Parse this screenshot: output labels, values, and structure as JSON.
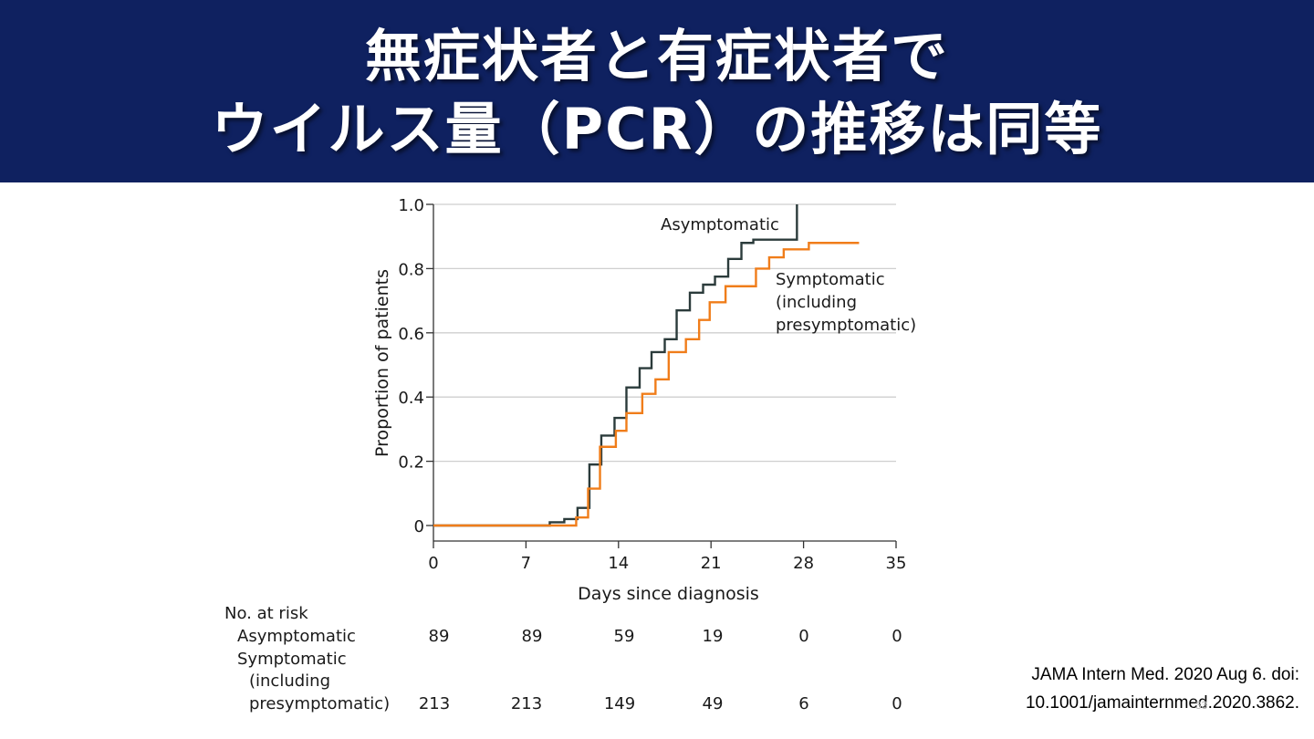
{
  "slide": {
    "title_line1": "無症状者と有症状者で",
    "title_line2": "ウイルス量（PCR）の推移は同等",
    "banner_color": "#0f2160",
    "citation_line1": "JAMA Intern Med. 2020 Aug 6. doi:",
    "citation_line2": "10.1001/jamainternmed.2020.3862.",
    "page_number": "33"
  },
  "chart_data": {
    "type": "line",
    "step": true,
    "xlabel": "Days since diagnosis",
    "ylabel": "Proportion of patients",
    "xlim": [
      0,
      35
    ],
    "ylim": [
      0,
      1.0
    ],
    "xticks": [
      0,
      7,
      14,
      21,
      28,
      35
    ],
    "yticks": [
      0,
      0.2,
      0.4,
      0.6,
      0.8,
      1.0
    ],
    "ytick_labels": [
      "0",
      "0.2",
      "0.4",
      "0.6",
      "0.8",
      "1.0"
    ],
    "grid": "horizontal",
    "series": [
      {
        "name": "Asymptomatic",
        "label_lines": [
          "Asymptomatic"
        ],
        "color": "#2b3b3b",
        "x": [
          0,
          8.8,
          9.9,
          10.9,
          11.8,
          12.7,
          13.7,
          14.6,
          15.6,
          16.5,
          17.5,
          18.4,
          19.4,
          20.4,
          21.3,
          22.3,
          23.3,
          24.2,
          27.5
        ],
        "y": [
          0,
          0.01,
          0.02,
          0.055,
          0.19,
          0.28,
          0.335,
          0.43,
          0.49,
          0.54,
          0.58,
          0.67,
          0.725,
          0.75,
          0.775,
          0.83,
          0.88,
          0.89,
          1.0
        ],
        "x_end": 27.5
      },
      {
        "name": "Symptomatic (including presymptomatic)",
        "label_lines": [
          "Symptomatic",
          "(including",
          "presymptomatic)"
        ],
        "color": "#f07d1a",
        "x": [
          0,
          10.8,
          11.7,
          12.6,
          13.8,
          14.6,
          15.8,
          16.8,
          17.8,
          19.1,
          20.1,
          20.9,
          22.1,
          24.4,
          25.4,
          26.5,
          28.4
        ],
        "y": [
          0,
          0.025,
          0.115,
          0.245,
          0.295,
          0.35,
          0.41,
          0.455,
          0.54,
          0.58,
          0.64,
          0.695,
          0.745,
          0.8,
          0.835,
          0.86,
          0.88
        ],
        "x_end": 32.2
      }
    ],
    "risk_table": {
      "heading": "No. at risk",
      "rows": [
        {
          "label_lines": [
            "Asymptomatic"
          ],
          "values": [
            "89",
            "89",
            "59",
            "19",
            "0",
            "0"
          ]
        },
        {
          "label_lines": [
            "Symptomatic",
            "(including",
            "presymptomatic)"
          ],
          "values": [
            "213",
            "213",
            "149",
            "49",
            "6",
            "0"
          ]
        }
      ]
    }
  }
}
